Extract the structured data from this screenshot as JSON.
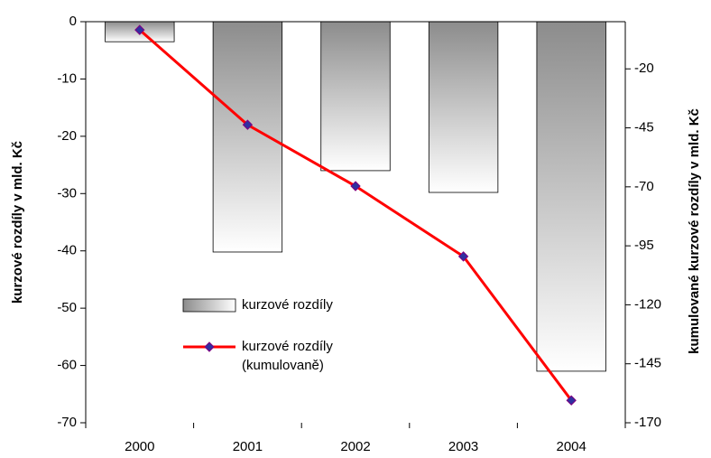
{
  "chart_data": {
    "type": "bar",
    "categories": [
      "2000",
      "2001",
      "2002",
      "2003",
      "2004"
    ],
    "ylabel": "kurzové rozdíly v mld. Kč",
    "y2label": "kumulované kurzové rozdíly v mld. Kč",
    "ylim": [
      -70,
      0
    ],
    "yticks": [
      0,
      -10,
      -20,
      -30,
      -40,
      -50,
      -60,
      -70
    ],
    "y2lim": [
      -170,
      0
    ],
    "y2ticks": [
      -20,
      -45,
      -70,
      -95,
      -120,
      -145,
      -170
    ],
    "series": [
      {
        "name": "kurzové rozdíly",
        "type": "bar",
        "color": "#8c8c8c",
        "values": [
          -3.5,
          -40.2,
          -26.0,
          -29.8,
          -61.0
        ]
      },
      {
        "name": "kurzové rozdíly (kumulovaně)",
        "type": "line",
        "axis": "y2",
        "color": "#ff0000",
        "marker_color": "#3030a0",
        "values": [
          -3.5,
          -43.7,
          -69.7,
          -99.5,
          -160.5
        ]
      }
    ]
  }
}
